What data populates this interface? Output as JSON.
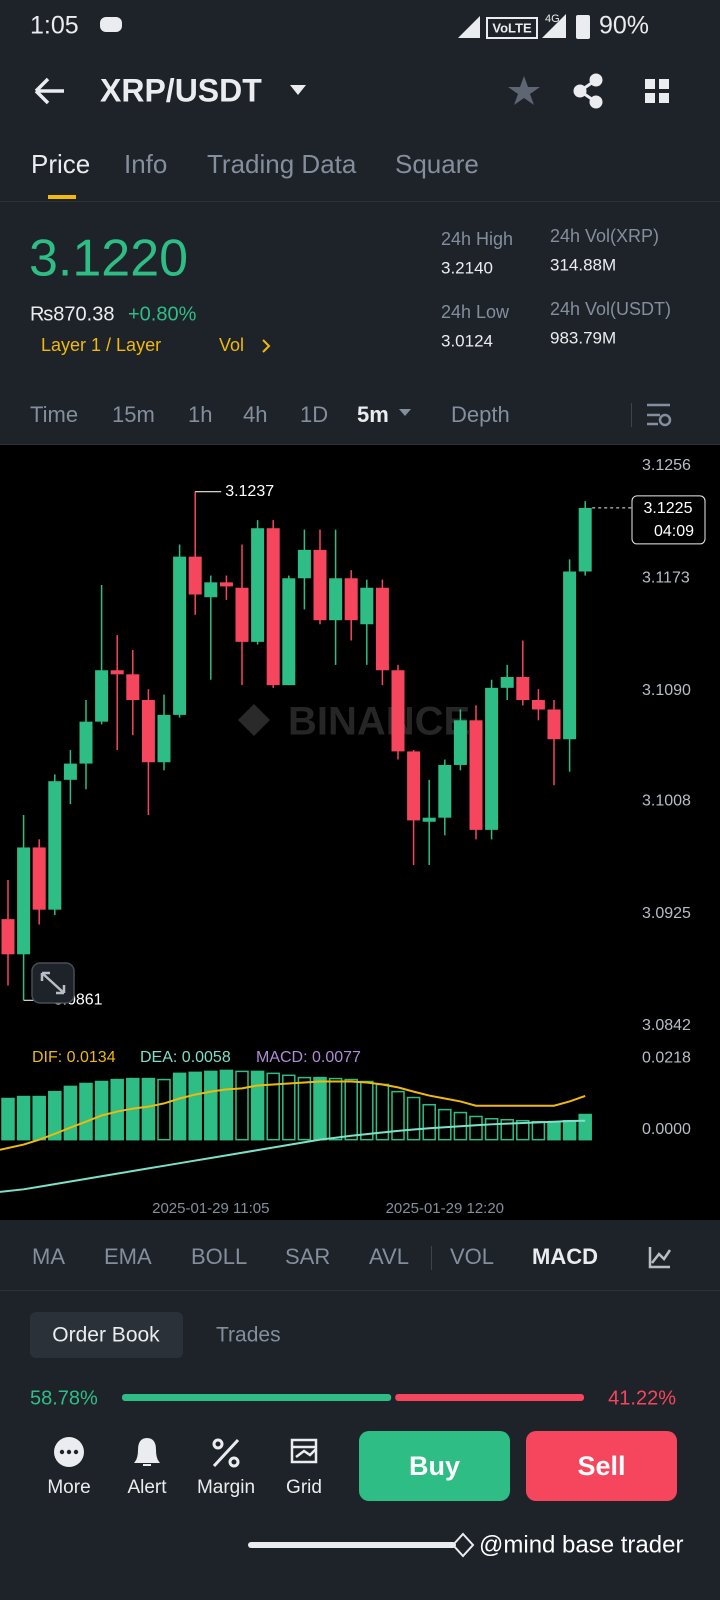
{
  "status_bar": {
    "time": "1:05",
    "network": "VoLTE",
    "signal": "4G",
    "battery": "90%"
  },
  "header": {
    "pair": "XRP/USDT"
  },
  "tabs": [
    "Price",
    "Info",
    "Trading Data",
    "Square"
  ],
  "ticker": {
    "price": "3.1220",
    "fiat": "₨870.38",
    "change": "+0.80%",
    "tags": [
      "Layer 1 / Layer",
      "Vol"
    ],
    "stats": [
      {
        "label": "24h High",
        "value": "3.2140"
      },
      {
        "label": "24h Vol(XRP)",
        "value": "314.88M"
      },
      {
        "label": "24h Low",
        "value": "3.0124"
      },
      {
        "label": "24h Vol(USDT)",
        "value": "983.79M"
      }
    ]
  },
  "intervals": [
    "Time",
    "15m",
    "1h",
    "4h",
    "1D",
    "5m",
    "Depth"
  ],
  "indicators": [
    "MA",
    "EMA",
    "BOLL",
    "SAR",
    "AVL",
    "VOL",
    "MACD"
  ],
  "chart_data": {
    "type": "candlestick",
    "watermark": "BINANCE",
    "up_color": "#2ebd85",
    "down_color": "#f6465d",
    "countdown": "04:09",
    "categories": [
      null,
      null,
      null,
      null,
      null,
      null,
      null,
      null,
      null,
      null,
      null,
      null,
      null,
      "2025-01-29 11:05",
      null,
      null,
      null,
      null,
      null,
      null,
      null,
      null,
      null,
      null,
      null,
      null,
      null,
      null,
      "2025-01-29 12:20",
      null,
      null,
      null,
      null,
      null,
      null,
      null,
      null,
      null
    ],
    "open": [
      3.0921,
      3.0895,
      3.0974,
      3.0928,
      3.1024,
      3.1036,
      3.1067,
      3.1105,
      3.1102,
      3.1083,
      3.1037,
      3.1072,
      3.1189,
      3.1159,
      3.117,
      3.1166,
      3.1126,
      3.121,
      3.1094,
      3.1173,
      3.1194,
      3.1142,
      3.1173,
      3.1139,
      3.1166,
      3.1105,
      3.1045,
      3.0993,
      3.0996,
      3.1035,
      3.1068,
      3.0987,
      3.1092,
      3.11,
      3.1083,
      3.1076,
      3.1054,
      3.1178
    ],
    "high": [
      3.095,
      3.0998,
      3.098,
      3.1028,
      3.1046,
      3.1083,
      3.1168,
      3.1131,
      3.112,
      3.1091,
      3.1087,
      3.1198,
      3.1237,
      3.1175,
      3.1175,
      3.1198,
      3.1216,
      3.1216,
      3.1175,
      3.1209,
      3.1209,
      3.1209,
      3.1179,
      3.1172,
      3.1172,
      3.1109,
      3.1046,
      3.1024,
      3.1039,
      3.1076,
      3.1079,
      3.1098,
      3.1109,
      3.1127,
      3.1091,
      3.1083,
      3.1187,
      3.123
    ],
    "low": [
      3.0872,
      3.0861,
      3.0917,
      3.0924,
      3.1006,
      3.1017,
      3.1065,
      3.1046,
      3.1057,
      3.0998,
      3.1031,
      3.107,
      3.1146,
      3.1098,
      3.1157,
      3.1094,
      3.1124,
      3.1092,
      3.1094,
      3.115,
      3.1139,
      3.1109,
      3.1127,
      3.1109,
      3.1094,
      3.1039,
      3.0961,
      3.0961,
      3.0983,
      3.1031,
      3.098,
      3.098,
      3.1083,
      3.1079,
      3.1068,
      3.102,
      3.103,
      3.1175
    ],
    "close": [
      3.0895,
      3.0974,
      3.0928,
      3.1023,
      3.1036,
      3.1067,
      3.1105,
      3.1102,
      3.1083,
      3.1037,
      3.1072,
      3.1189,
      3.1161,
      3.117,
      3.1167,
      3.1126,
      3.121,
      3.1094,
      3.1173,
      3.1194,
      3.1142,
      3.1173,
      3.1142,
      3.1166,
      3.1105,
      3.1045,
      3.0994,
      3.0996,
      3.1035,
      3.1068,
      3.0987,
      3.1092,
      3.11,
      3.1083,
      3.1076,
      3.1054,
      3.1178,
      3.1225
    ],
    "ylim": [
      3.0842,
      3.1256
    ],
    "yticks": [
      3.0842,
      3.0925,
      3.1008,
      {
        "value": 3.109,
        "label": "3.1090"
      },
      3.1173,
      3.1256
    ],
    "macd": {
      "ylim": [
        -0.02,
        0.025
      ],
      "yticks": [
        0.0218,
        {
          "value": 0,
          "label": "0.0000"
        }
      ],
      "series": [
        {
          "label": "DIF: 0.0134",
          "color": "#f0b90b",
          "values": [
            -0.0031,
            -0.0015,
            0.0,
            0.0018,
            0.0037,
            0.0055,
            0.0074,
            0.0086,
            0.0095,
            0.0101,
            0.0111,
            0.0126,
            0.0138,
            0.0147,
            0.0154,
            0.0157,
            0.0166,
            0.0169,
            0.0172,
            0.0175,
            0.0178,
            0.0178,
            0.0178,
            0.0175,
            0.0169,
            0.016,
            0.0147,
            0.0135,
            0.0126,
            0.0117,
            0.0104,
            0.0104,
            0.0104,
            0.0104,
            0.0104,
            0.0104,
            0.0117,
            0.0134
          ]
        },
        {
          "label": "DEA: 0.0058",
          "color": "#7ee0c8",
          "values": [
            -0.016,
            -0.0152,
            -0.0144,
            -0.0136,
            -0.0128,
            -0.012,
            -0.0112,
            -0.0104,
            -0.0096,
            -0.0088,
            -0.008,
            -0.0072,
            -0.0064,
            -0.0056,
            -0.0048,
            -0.004,
            -0.0032,
            -0.0024,
            -0.0016,
            -0.0008,
            0.0,
            0.0006,
            0.0012,
            0.0017,
            0.0022,
            0.0027,
            0.0031,
            0.0035,
            0.0038,
            0.0041,
            0.0044,
            0.0047,
            0.0049,
            0.0051,
            0.0053,
            0.0055,
            0.0057,
            0.0058
          ]
        }
      ],
      "histogram": {
        "label": "MACD: 0.0077",
        "label_color": "#b18cd9",
        "color": "#2ebd85",
        "values": [
          0.0126,
          0.0132,
          0.0132,
          0.0147,
          0.0163,
          0.0172,
          0.0178,
          0.0184,
          0.0187,
          0.0187,
          0.0184,
          0.0203,
          0.0206,
          0.0209,
          0.0212,
          0.0209,
          0.0209,
          0.0203,
          0.0197,
          0.019,
          0.019,
          0.0187,
          0.0184,
          0.0178,
          0.0169,
          0.0147,
          0.0129,
          0.0107,
          0.0092,
          0.0083,
          0.0071,
          0.0064,
          0.0061,
          0.0058,
          0.0055,
          0.0055,
          0.0058,
          0.0077
        ]
      }
    }
  },
  "order_book": {
    "tabs": [
      "Order Book",
      "Trades"
    ],
    "buy": {
      "value": 58.78,
      "label": "58.78%"
    },
    "sell": {
      "value": 41.22,
      "label": "41.22%"
    }
  },
  "actions": [
    "More",
    "Alert",
    "Margin",
    "Grid"
  ],
  "buttons": [
    "Buy",
    "Sell"
  ],
  "watermark": "@mind base trader"
}
